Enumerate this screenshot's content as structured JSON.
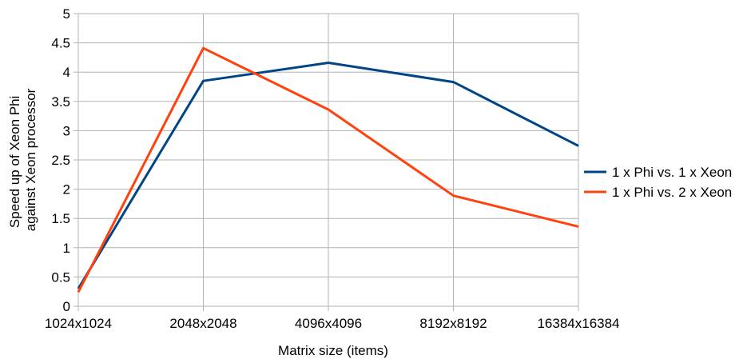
{
  "chart_data": {
    "type": "line",
    "categories": [
      "1024x1024",
      "2048x2048",
      "4096x4096",
      "8192x8192",
      "16384x16384"
    ],
    "series": [
      {
        "name": "1 x Phi vs. 1 x Xeon",
        "values": [
          0.3,
          3.85,
          4.16,
          3.83,
          2.74
        ],
        "color": "#004586"
      },
      {
        "name": "1 x Phi vs. 2 x Xeon",
        "values": [
          0.24,
          4.41,
          3.36,
          1.89,
          1.36
        ],
        "color": "#ff420e"
      }
    ],
    "xlabel": "Matrix size (items)",
    "ylabel": [
      "Speed up of Xeon Phi",
      "against Xeon processor"
    ],
    "ylim": [
      0,
      5
    ],
    "yticks": [
      "0",
      "0.5",
      "1",
      "1.5",
      "2",
      "2.5",
      "3",
      "3.5",
      "4",
      "4.5",
      "5"
    ],
    "grid": true,
    "legend": "right"
  }
}
